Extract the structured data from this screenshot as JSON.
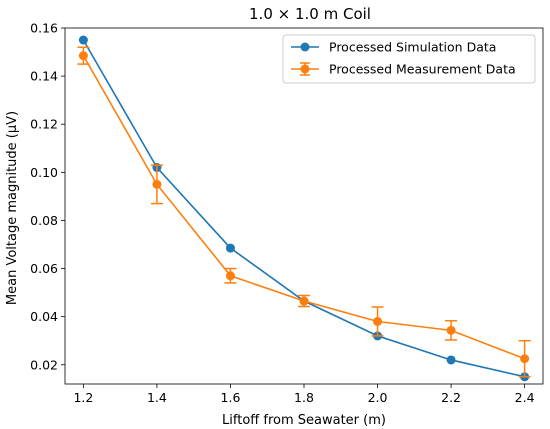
{
  "chart_data": {
    "type": "line",
    "title": "1.0 × 1.0 m Coil",
    "xlabel": "Liftoff from Seawater (m)",
    "ylabel": "Mean Voltage magnitude (μV)",
    "xlim": [
      1.15,
      2.45
    ],
    "ylim": [
      0.012,
      0.16
    ],
    "xticks": [
      1.2,
      1.4,
      1.6,
      1.8,
      2.0,
      2.2,
      2.4
    ],
    "xtick_labels": [
      "1.2",
      "1.4",
      "1.6",
      "1.8",
      "2.0",
      "2.2",
      "2.4"
    ],
    "yticks": [
      0.02,
      0.04,
      0.06,
      0.08,
      0.1,
      0.12,
      0.14,
      0.16
    ],
    "ytick_labels": [
      "0.02",
      "0.04",
      "0.06",
      "0.08",
      "0.10",
      "0.12",
      "0.14",
      "0.16"
    ],
    "grid": false,
    "legend_position": "top-right",
    "x": [
      1.2,
      1.4,
      1.6,
      1.8,
      2.0,
      2.2,
      2.4
    ],
    "series": [
      {
        "name": "Processed Simulation Data",
        "color": "#1f77b4",
        "values": [
          0.155,
          0.102,
          0.0685,
          0.0465,
          0.032,
          0.022,
          0.015
        ]
      },
      {
        "name": "Processed Measurement Data",
        "color": "#ff7f0e",
        "values": [
          0.1485,
          0.095,
          0.057,
          0.0465,
          0.038,
          0.0343,
          0.0225
        ],
        "error": [
          0.0035,
          0.008,
          0.003,
          0.0023,
          0.006,
          0.004,
          0.0075
        ]
      }
    ]
  }
}
